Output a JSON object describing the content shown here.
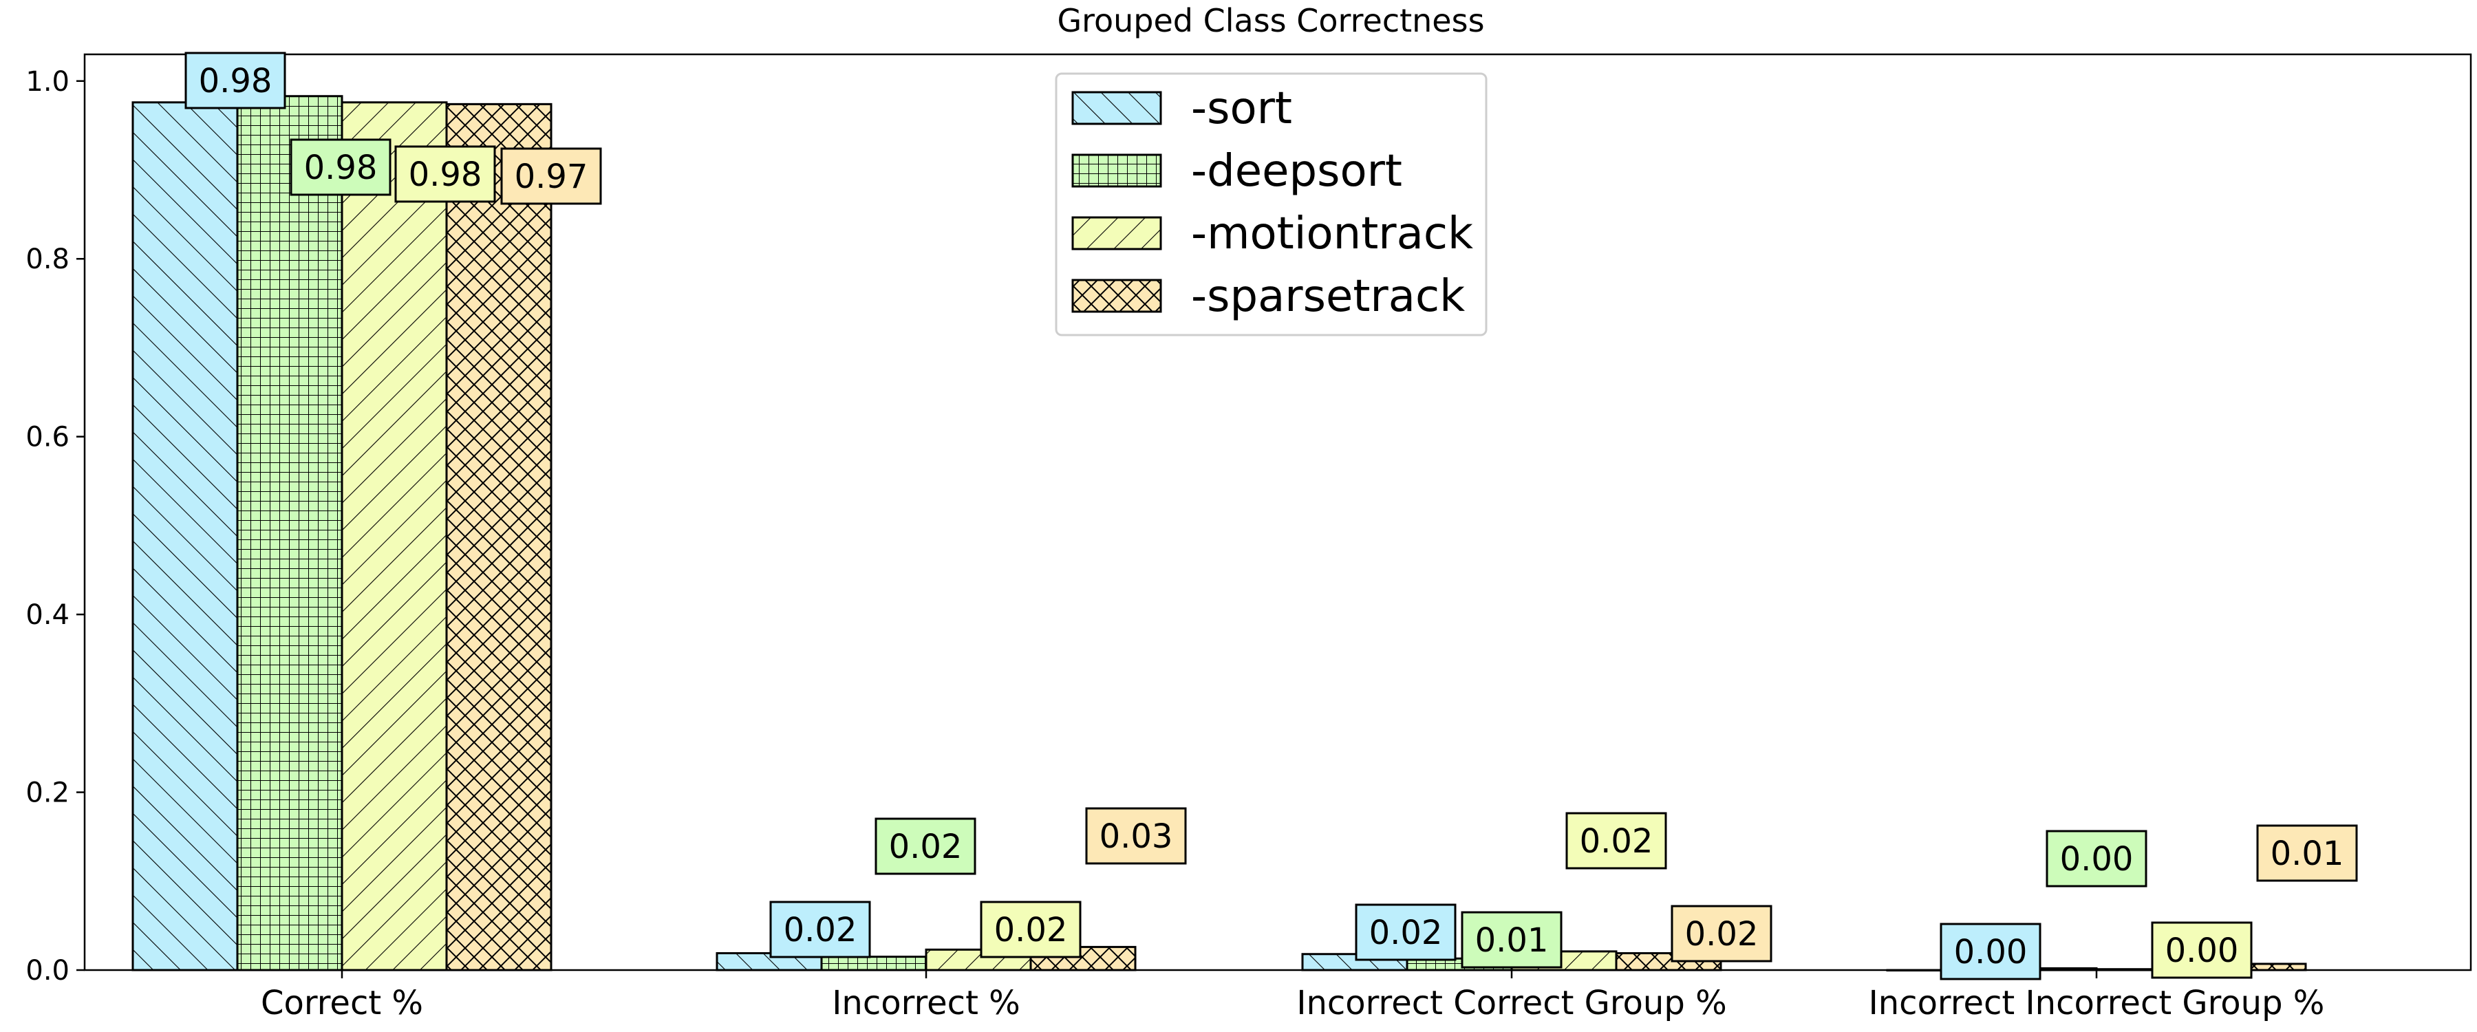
{
  "chart_data": {
    "type": "bar",
    "title": "Grouped Class Correctness",
    "xlabel": "",
    "ylabel": "",
    "ylim": [
      0,
      1.03
    ],
    "yticks": [
      "0.0",
      "0.2",
      "0.4",
      "0.6",
      "0.8",
      "1.0"
    ],
    "categories": [
      "Correct %",
      "Incorrect %",
      "Incorrect Correct Group %",
      "Incorrect Incorrect Group %"
    ],
    "series": [
      {
        "name": "-sort",
        "color": "#bdeefc",
        "hatch": "diagonal-forward",
        "values": [
          0.976,
          0.019,
          0.018,
          0.0
        ],
        "labels": [
          "0.98",
          "0.02",
          "0.02",
          "0.00"
        ]
      },
      {
        "name": "-deepsort",
        "color": "#cdfcba",
        "hatch": "grid",
        "values": [
          0.983,
          0.015,
          0.013,
          0.002
        ],
        "labels": [
          "0.98",
          "0.02",
          "0.01",
          "0.00"
        ]
      },
      {
        "name": "-motiontrack",
        "color": "#f3fdb8",
        "hatch": "diagonal-back",
        "values": [
          0.976,
          0.023,
          0.021,
          0.001
        ],
        "labels": [
          "0.98",
          "0.02",
          "0.02",
          "0.00"
        ]
      },
      {
        "name": "-sparsetrack",
        "color": "#fde8b6",
        "hatch": "crosshatch",
        "values": [
          0.974,
          0.026,
          0.019,
          0.007
        ],
        "labels": [
          "0.97",
          "0.03",
          "0.02",
          "0.01"
        ]
      }
    ],
    "grid": false,
    "legend_position": "top-center"
  }
}
